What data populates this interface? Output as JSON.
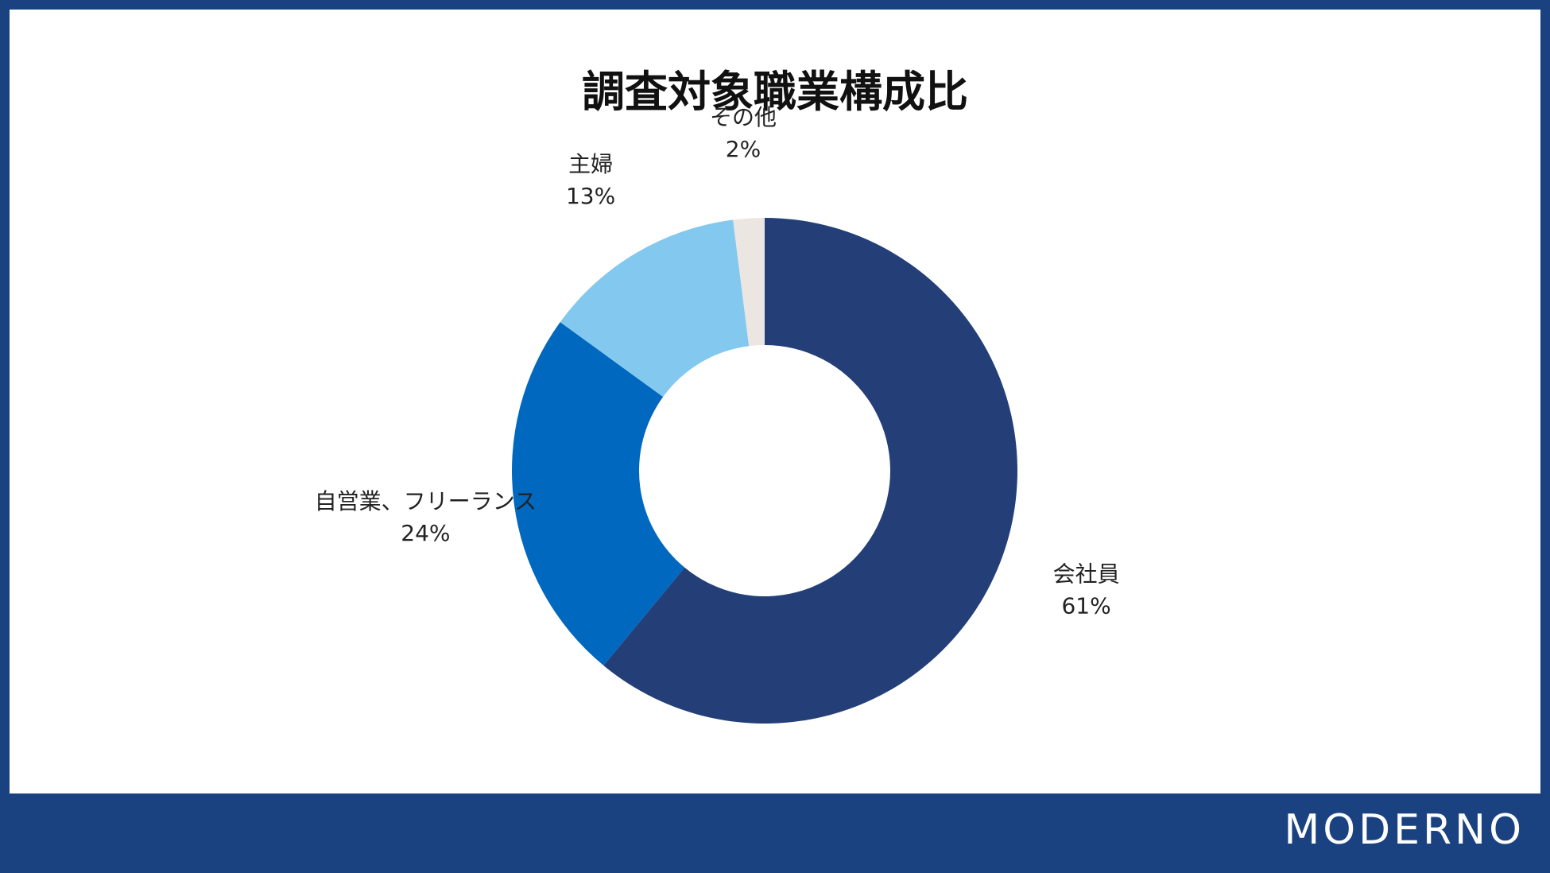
{
  "chart_data": {
    "type": "pie",
    "title": "調査対象職業構成比",
    "donut": true,
    "slices": [
      {
        "label": "会社員",
        "value": 61,
        "value_label": "61%",
        "color": "#243f77"
      },
      {
        "label": "自営業、フリーランス",
        "value": 24,
        "value_label": "24%",
        "color": "#0068bf"
      },
      {
        "label": "主婦",
        "value": 13,
        "value_label": "13%",
        "color": "#82c8ef"
      },
      {
        "label": "その他",
        "value": 2,
        "value_label": "2%",
        "color": "#ebe6e2"
      }
    ],
    "start": "12 o'clock",
    "direction": "clockwise",
    "legend": "none"
  },
  "footer": {
    "brand": "MODERNO"
  }
}
